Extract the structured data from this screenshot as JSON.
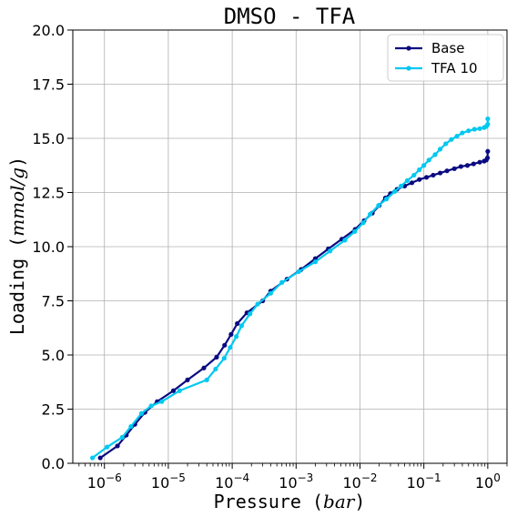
{
  "chart_data": {
    "type": "line",
    "title": "DMSO - TFA",
    "xlabel": "Pressure",
    "xlabel_unit": "bar",
    "ylabel": "Loading",
    "ylabel_unit": "mmol/g",
    "xscale": "log",
    "xlim": [
      3.2e-07,
      2.0
    ],
    "ylim": [
      0,
      20
    ],
    "xticks": [
      {
        "value": 1e-06,
        "base": "10",
        "exp": "−6"
      },
      {
        "value": 1e-05,
        "base": "10",
        "exp": "−5"
      },
      {
        "value": 0.0001,
        "base": "10",
        "exp": "−4"
      },
      {
        "value": 0.001,
        "base": "10",
        "exp": "−3"
      },
      {
        "value": 0.01,
        "base": "10",
        "exp": "−2"
      },
      {
        "value": 0.1,
        "base": "10",
        "exp": "−1"
      },
      {
        "value": 1,
        "base": "10",
        "exp": "0"
      }
    ],
    "yticks": [
      "0.0",
      "2.5",
      "5.0",
      "7.5",
      "10.0",
      "12.5",
      "15.0",
      "17.5",
      "20.0"
    ],
    "grid": true,
    "legend_position": "top-right",
    "series": [
      {
        "name": "Base",
        "color": "#0a0a80",
        "points": [
          [
            8.6e-07,
            0.25
          ],
          [
            1.6e-06,
            0.8
          ],
          [
            2.2e-06,
            1.3
          ],
          [
            3e-06,
            1.8
          ],
          [
            4.3e-06,
            2.35
          ],
          [
            6.7e-06,
            2.85
          ],
          [
            1.2e-05,
            3.35
          ],
          [
            2e-05,
            3.85
          ],
          [
            3.6e-05,
            4.4
          ],
          [
            5.7e-05,
            4.9
          ],
          [
            7.6e-05,
            5.45
          ],
          [
            9.6e-05,
            5.95
          ],
          [
            0.00012,
            6.45
          ],
          [
            0.00017,
            6.95
          ],
          [
            0.0003,
            7.5
          ],
          [
            0.0004,
            7.95
          ],
          [
            0.00072,
            8.5
          ],
          [
            0.0012,
            8.95
          ],
          [
            0.002,
            9.45
          ],
          [
            0.0032,
            9.9
          ],
          [
            0.0052,
            10.35
          ],
          [
            0.0084,
            10.8
          ],
          [
            0.0116,
            11.2
          ],
          [
            0.0156,
            11.55
          ],
          [
            0.02,
            11.9
          ],
          [
            0.025,
            12.25
          ],
          [
            0.03,
            12.45
          ],
          [
            0.038,
            12.65
          ],
          [
            0.05,
            12.8
          ],
          [
            0.065,
            12.95
          ],
          [
            0.085,
            13.1
          ],
          [
            0.11,
            13.2
          ],
          [
            0.14,
            13.3
          ],
          [
            0.18,
            13.4
          ],
          [
            0.23,
            13.5
          ],
          [
            0.3,
            13.6
          ],
          [
            0.38,
            13.7
          ],
          [
            0.48,
            13.75
          ],
          [
            0.6,
            13.82
          ],
          [
            0.75,
            13.9
          ],
          [
            0.88,
            13.95
          ],
          [
            0.95,
            14.0
          ],
          [
            0.99,
            14.1
          ],
          [
            1.0,
            14.4
          ]
        ]
      },
      {
        "name": "TFA 10",
        "color": "#00c8f0",
        "points": [
          [
            6.5e-07,
            0.25
          ],
          [
            1.1e-06,
            0.75
          ],
          [
            1.9e-06,
            1.2
          ],
          [
            2.6e-06,
            1.7
          ],
          [
            3.8e-06,
            2.3
          ],
          [
            5.4e-06,
            2.65
          ],
          [
            7.9e-06,
            2.85
          ],
          [
            1.5e-05,
            3.35
          ],
          [
            4e-05,
            3.85
          ],
          [
            5.5e-05,
            4.35
          ],
          [
            7.5e-05,
            4.85
          ],
          [
            9.3e-05,
            5.35
          ],
          [
            0.000116,
            5.85
          ],
          [
            0.00014,
            6.35
          ],
          [
            0.00019,
            6.9
          ],
          [
            0.00025,
            7.35
          ],
          [
            0.0004,
            7.85
          ],
          [
            0.0006,
            8.35
          ],
          [
            0.0011,
            8.85
          ],
          [
            0.002,
            9.3
          ],
          [
            0.0034,
            9.8
          ],
          [
            0.0058,
            10.3
          ],
          [
            0.0083,
            10.7
          ],
          [
            0.0112,
            11.1
          ],
          [
            0.0144,
            11.5
          ],
          [
            0.0195,
            11.9
          ],
          [
            0.026,
            12.2
          ],
          [
            0.035,
            12.55
          ],
          [
            0.044,
            12.8
          ],
          [
            0.055,
            13.05
          ],
          [
            0.07,
            13.3
          ],
          [
            0.085,
            13.55
          ],
          [
            0.1,
            13.75
          ],
          [
            0.12,
            14.0
          ],
          [
            0.15,
            14.25
          ],
          [
            0.18,
            14.5
          ],
          [
            0.22,
            14.75
          ],
          [
            0.27,
            14.95
          ],
          [
            0.33,
            15.1
          ],
          [
            0.4,
            15.25
          ],
          [
            0.5,
            15.35
          ],
          [
            0.62,
            15.42
          ],
          [
            0.75,
            15.45
          ],
          [
            0.88,
            15.5
          ],
          [
            0.95,
            15.55
          ],
          [
            1.0,
            15.65
          ],
          [
            1.0,
            15.9
          ]
        ]
      }
    ]
  }
}
